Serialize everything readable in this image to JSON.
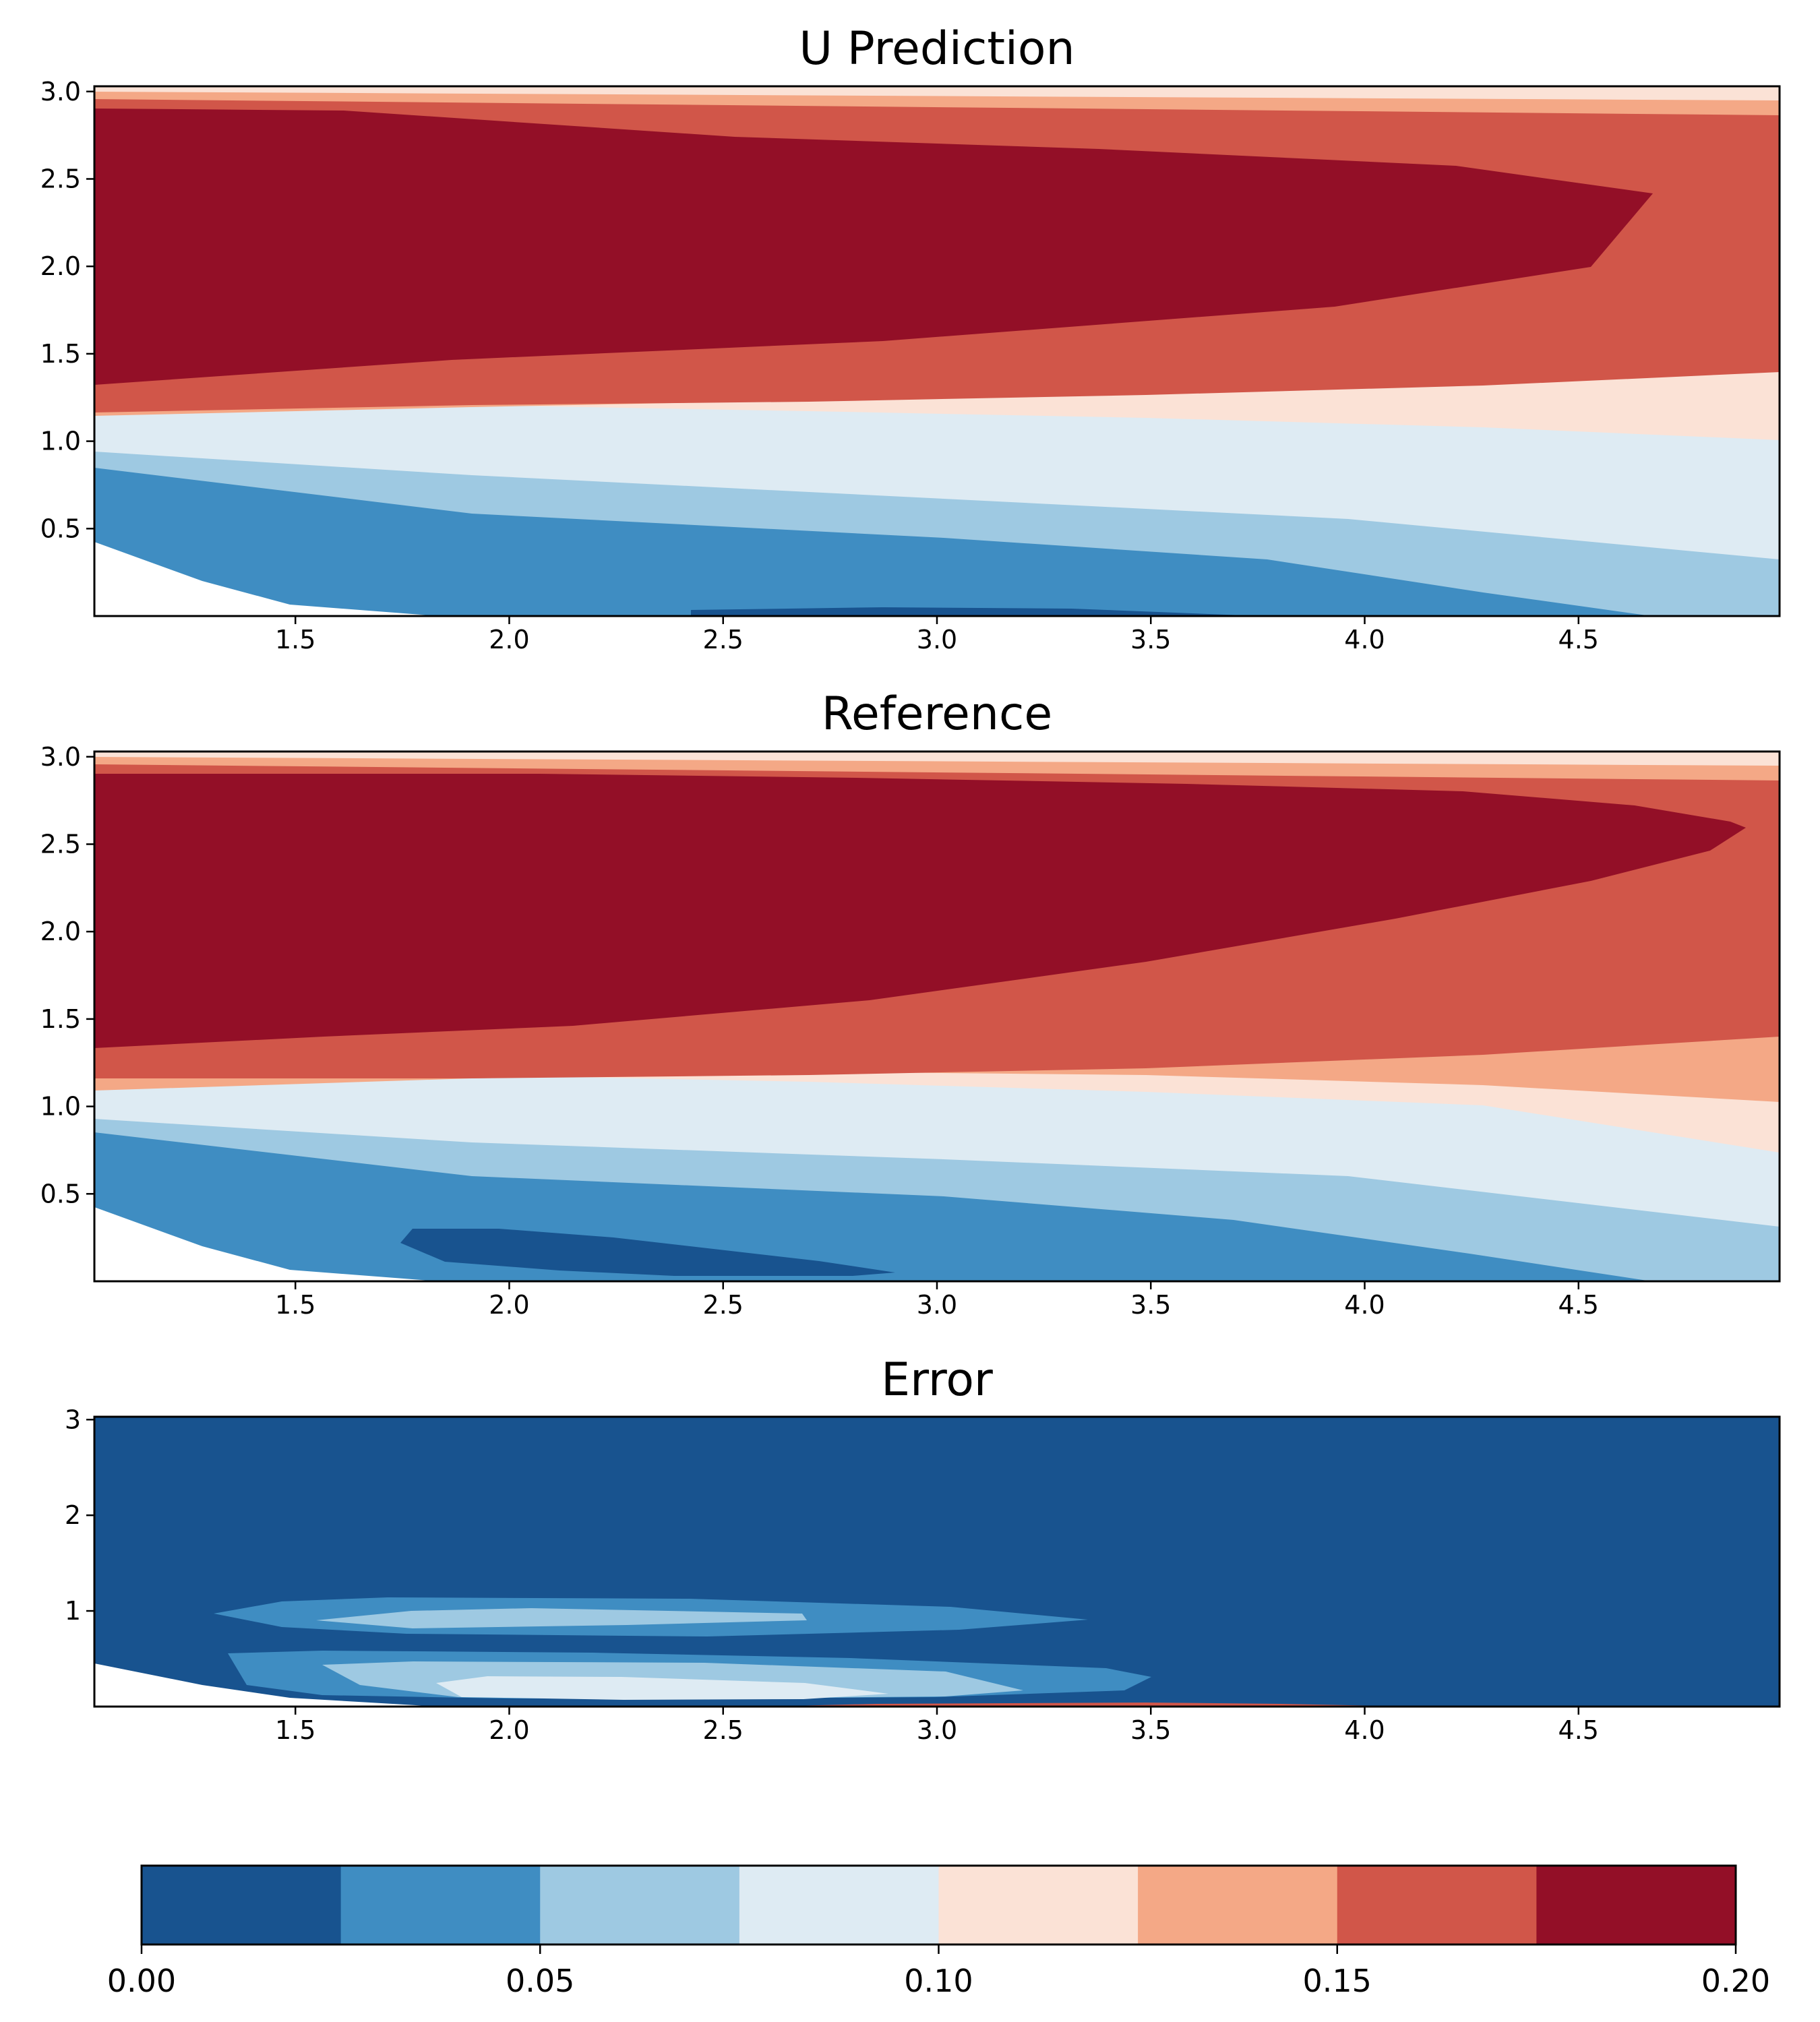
{
  "chart_data": [
    {
      "type": "contour",
      "title": "U Prediction",
      "xlabel": "",
      "ylabel": "",
      "xlim": [
        1.03,
        4.97
      ],
      "ylim": [
        0.0,
        3.03
      ],
      "xticks": [
        "1.5",
        "2.0",
        "2.5",
        "3.0",
        "3.5",
        "4.0",
        "4.5"
      ],
      "yticks": [
        "0.5",
        "1.0",
        "1.5",
        "2.0",
        "2.5",
        "3.0"
      ],
      "levels": [
        0.0,
        0.025,
        0.05,
        0.075,
        0.1,
        0.125,
        0.15,
        0.175,
        0.2
      ],
      "regions": [
        {
          "level_band": [
            0.0,
            0.025
          ],
          "points": [
            [
              2.2,
              0.03
            ],
            [
              2.8,
              0.05
            ],
            [
              3.4,
              0.04
            ],
            [
              3.7,
              0.0
            ],
            [
              2.2,
              0.0
            ]
          ]
        },
        {
          "level_band": [
            0.175,
            0.2
          ],
          "points": [
            [
              1.03,
              1.32
            ],
            [
              1.5,
              1.42
            ],
            [
              2.0,
              1.5
            ],
            [
              2.5,
              1.58
            ],
            [
              3.0,
              1.7
            ],
            [
              3.5,
              1.85
            ],
            [
              4.0,
              2.05
            ],
            [
              4.5,
              2.25
            ],
            [
              4.72,
              2.4
            ],
            [
              4.5,
              2.56
            ],
            [
              4.0,
              2.67
            ],
            [
              3.5,
              2.74
            ],
            [
              3.0,
              2.79
            ],
            [
              2.5,
              2.83
            ],
            [
              2.0,
              2.86
            ],
            [
              1.5,
              2.88
            ],
            [
              1.03,
              2.89
            ]
          ]
        }
      ],
      "bands_at_x": [
        {
          "x": 1.03,
          "boundaries": {
            "white_below": 0.43,
            "0.025": 0.82,
            "0.05": 0.93,
            "0.075": 1.0,
            "0.1": 1.08,
            "0.125": 1.16,
            "0.15": 1.32,
            "0.175_top": 2.89,
            "0.15_top": 2.93,
            "0.125_top": 2.97,
            "0.1_top": 3.0
          }
        },
        {
          "x": 4.97,
          "boundaries": {
            "white_below": 0.0,
            "0.025": 0.0,
            "0.05": 0.28,
            "0.075": 0.72,
            "0.1": 1.04,
            "0.125": 1.39,
            "0.15_top": 2.84,
            "0.125_top": 2.93,
            "0.1_top": 3.0
          }
        }
      ]
    },
    {
      "type": "contour",
      "title": "Reference",
      "xlabel": "",
      "ylabel": "",
      "xlim": [
        1.03,
        4.97
      ],
      "ylim": [
        0.0,
        3.03
      ],
      "xticks": [
        "1.5",
        "2.0",
        "2.5",
        "3.0",
        "3.5",
        "4.0",
        "4.5"
      ],
      "yticks": [
        "0.5",
        "1.0",
        "1.5",
        "2.0",
        "2.5",
        "3.0"
      ],
      "levels": [
        0.0,
        0.025,
        0.05,
        0.075,
        0.1,
        0.125,
        0.15,
        0.175,
        0.2
      ],
      "regions": [
        {
          "level_band": [
            0.0,
            0.025
          ],
          "points": [
            [
              1.75,
              0.22
            ],
            [
              1.82,
              0.3
            ],
            [
              2.2,
              0.3
            ],
            [
              2.6,
              0.25
            ],
            [
              3.0,
              0.14
            ],
            [
              3.1,
              0.07
            ],
            [
              2.9,
              0.05
            ],
            [
              2.4,
              0.05
            ],
            [
              1.95,
              0.08
            ],
            [
              1.78,
              0.16
            ]
          ]
        },
        {
          "level_band": [
            0.175,
            0.2
          ],
          "points": [
            [
              1.03,
              1.33
            ],
            [
              1.5,
              1.4
            ],
            [
              2.0,
              1.47
            ],
            [
              2.5,
              1.55
            ],
            [
              3.0,
              1.67
            ],
            [
              3.5,
              1.82
            ],
            [
              4.0,
              2.0
            ],
            [
              4.5,
              2.22
            ],
            [
              4.75,
              2.35
            ],
            [
              4.87,
              2.45
            ],
            [
              4.78,
              2.52
            ],
            [
              4.5,
              2.6
            ],
            [
              4.0,
              2.68
            ],
            [
              3.5,
              2.74
            ],
            [
              3.0,
              2.79
            ],
            [
              2.5,
              2.83
            ],
            [
              2.0,
              2.86
            ],
            [
              1.5,
              2.88
            ],
            [
              1.03,
              2.89
            ]
          ]
        }
      ],
      "bands_at_x": [
        {
          "x": 1.03,
          "boundaries": {
            "white_below": 0.43,
            "0.025": 0.82,
            "0.05": 0.93,
            "0.075": 1.0,
            "0.1": 1.08,
            "0.125": 1.16,
            "0.15": 1.33,
            "0.175_top": 2.89,
            "0.15_top": 2.93,
            "0.125_top": 2.97,
            "0.1_top": 3.0
          }
        },
        {
          "x": 4.97,
          "boundaries": {
            "white_below": 0.0,
            "0.025": 0.0,
            "0.05": 0.3,
            "0.075": 0.73,
            "0.1": 1.03,
            "0.125": 1.39,
            "0.15_top": 2.85,
            "0.125_top": 2.93,
            "0.1_top": 3.0
          }
        }
      ]
    },
    {
      "type": "contour",
      "title": "Error",
      "xlabel": "",
      "ylabel": "",
      "xlim": [
        1.03,
        4.97
      ],
      "ylim": [
        0.0,
        3.03
      ],
      "xticks": [
        "1.5",
        "2.0",
        "2.5",
        "3.0",
        "3.5",
        "4.0",
        "4.5"
      ],
      "yticks": [
        "1",
        "2",
        "3"
      ],
      "levels": [
        0.0,
        0.025,
        0.05,
        0.075,
        0.1,
        0.125,
        0.15,
        0.175,
        0.2
      ],
      "regions": [
        {
          "level_band": [
            0.025,
            0.05
          ],
          "points": [
            [
              1.3,
              0.9
            ],
            [
              1.5,
              1.02
            ],
            [
              1.8,
              1.15
            ],
            [
              2.5,
              1.14
            ],
            [
              3.2,
              0.98
            ],
            [
              3.35,
              0.88
            ],
            [
              3.2,
              0.82
            ],
            [
              2.5,
              0.75
            ],
            [
              1.8,
              0.73
            ],
            [
              1.45,
              0.8
            ]
          ]
        },
        {
          "level_band": [
            0.05,
            0.075
          ],
          "points": [
            [
              1.55,
              0.9
            ],
            [
              1.8,
              0.98
            ],
            [
              2.3,
              1.0
            ],
            [
              2.7,
              0.94
            ],
            [
              2.55,
              0.86
            ],
            [
              2.0,
              0.83
            ],
            [
              1.7,
              0.85
            ]
          ]
        },
        {
          "level_band": [
            0.025,
            0.05
          ],
          "points": [
            [
              1.33,
              0.55
            ],
            [
              1.6,
              0.58
            ],
            [
              2.5,
              0.55
            ],
            [
              3.2,
              0.45
            ],
            [
              3.5,
              0.35
            ],
            [
              3.45,
              0.2
            ],
            [
              3.2,
              0.1
            ],
            [
              2.5,
              0.06
            ],
            [
              1.9,
              0.12
            ],
            [
              1.5,
              0.28
            ],
            [
              1.36,
              0.42
            ]
          ]
        },
        {
          "level_band": [
            0.05,
            0.075
          ],
          "points": [
            [
              1.55,
              0.45
            ],
            [
              2.0,
              0.46
            ],
            [
              2.6,
              0.44
            ],
            [
              3.1,
              0.32
            ],
            [
              3.2,
              0.18
            ],
            [
              2.9,
              0.1
            ],
            [
              2.2,
              0.08
            ],
            [
              1.8,
              0.14
            ],
            [
              1.6,
              0.28
            ]
          ]
        },
        {
          "level_band": [
            0.075,
            0.1
          ],
          "points": [
            [
              1.85,
              0.28
            ],
            [
              2.3,
              0.3
            ],
            [
              2.7,
              0.27
            ],
            [
              2.88,
              0.15
            ],
            [
              2.5,
              0.1
            ],
            [
              2.0,
              0.1
            ],
            [
              1.85,
              0.18
            ]
          ]
        },
        {
          "level_band": [
            0.15,
            0.2
          ],
          "points": [
            [
              2.6,
              0.0
            ],
            [
              3.6,
              0.03
            ],
            [
              3.6,
              0.0
            ]
          ]
        }
      ],
      "bands_at_x": [
        {
          "x": 1.03,
          "boundaries": {
            "white_below": 0.43,
            "0.025_top": 3.0
          }
        },
        {
          "x": 4.97,
          "boundaries": {
            "white_below": 0.0,
            "0.025_top": 3.0
          }
        }
      ]
    }
  ],
  "colorbar": {
    "ticks": [
      "0.00",
      "0.05",
      "0.10",
      "0.15",
      "0.20"
    ],
    "colors": [
      "#18538f",
      "#3f8dc2",
      "#9ec9e2",
      "#deebf3",
      "#fbe2d6",
      "#f4a886",
      "#d15649",
      "#930f27"
    ]
  }
}
